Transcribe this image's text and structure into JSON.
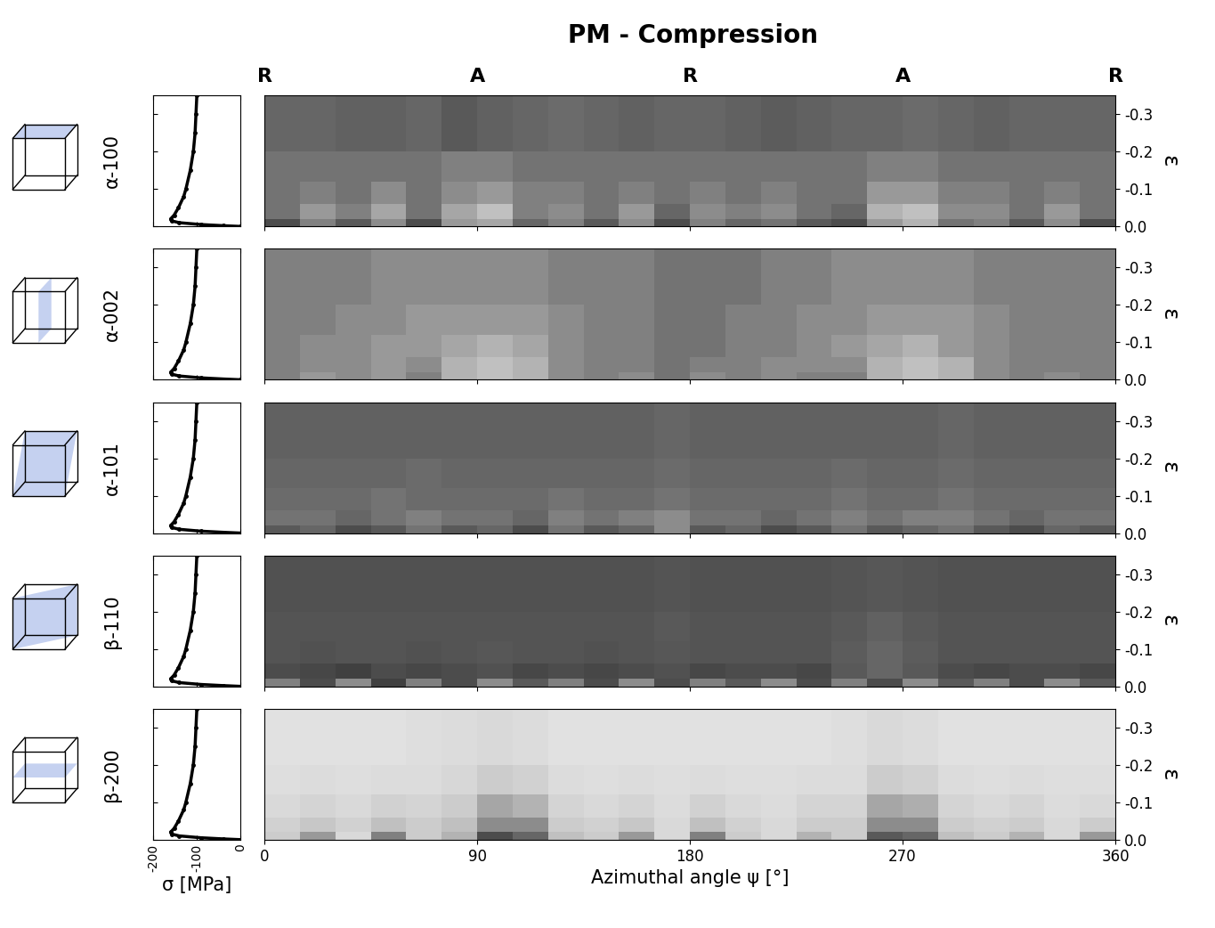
{
  "title": "PM - Compression",
  "xlabel": "Azimuthal angle ψ [°]",
  "ylabel": "ε",
  "xlim": [
    0,
    360
  ],
  "xticks": [
    0,
    90,
    180,
    270,
    360
  ],
  "top_labels": {
    "positions": [
      0,
      90,
      180,
      270,
      360
    ],
    "labels": [
      "R",
      "A",
      "R",
      "A",
      "R"
    ]
  },
  "ylim": [
    0,
    -0.35
  ],
  "yticks": [
    {
      "value": 0,
      "label": "0.0"
    },
    {
      "value": -0.1,
      "label": "-0.1"
    },
    {
      "value": -0.2,
      "label": "-0.2"
    },
    {
      "value": -0.3,
      "label": "-0.3"
    }
  ],
  "psi_edges": [
    0,
    15,
    30,
    45,
    60,
    75,
    90,
    105,
    120,
    135,
    150,
    165,
    180,
    195,
    210,
    225,
    240,
    255,
    270,
    285,
    300,
    315,
    330,
    345,
    360
  ],
  "strain_edges": [
    0,
    -0.02,
    -0.06,
    -0.12,
    -0.2,
    -0.35
  ],
  "cell_range": [
    0,
    1
  ],
  "stress_strain": {
    "xlabel": "σ [MPa]",
    "xlim": [
      -200,
      0
    ],
    "xticks": [
      -200,
      -100,
      0
    ],
    "strain": [
      0,
      -0.002,
      -0.005,
      -0.01,
      -0.015,
      -0.02,
      -0.03,
      -0.05,
      -0.08,
      -0.1,
      -0.15,
      -0.2,
      -0.25,
      -0.3,
      -0.35
    ],
    "stress": [
      0,
      -40,
      -90,
      -140,
      -158,
      -160,
      -152,
      -142,
      -130,
      -125,
      -115,
      -108,
      -104,
      -102,
      -100
    ]
  },
  "chart_data": [
    {
      "type": "heatmap",
      "label": "α-100",
      "cells": [
        [
          0.3,
          0.5,
          0.35,
          0.55,
          0.3,
          0.6,
          0.65,
          0.4,
          0.5,
          0.35,
          0.55,
          0.3,
          0.5,
          0.4,
          0.45,
          0.35,
          0.3,
          0.6,
          0.7,
          0.45,
          0.5,
          0.35,
          0.55,
          0.3
        ],
        [
          0.45,
          0.6,
          0.5,
          0.65,
          0.45,
          0.65,
          0.75,
          0.5,
          0.55,
          0.45,
          0.6,
          0.4,
          0.55,
          0.5,
          0.55,
          0.45,
          0.4,
          0.7,
          0.75,
          0.55,
          0.55,
          0.45,
          0.6,
          0.45
        ],
        [
          0.45,
          0.5,
          0.45,
          0.55,
          0.45,
          0.55,
          0.6,
          0.5,
          0.5,
          0.45,
          0.5,
          0.45,
          0.5,
          0.45,
          0.5,
          0.45,
          0.45,
          0.6,
          0.6,
          0.5,
          0.5,
          0.45,
          0.5,
          0.45
        ],
        [
          0.45,
          0.45,
          0.45,
          0.45,
          0.45,
          0.5,
          0.5,
          0.45,
          0.45,
          0.45,
          0.45,
          0.45,
          0.45,
          0.45,
          0.45,
          0.45,
          0.45,
          0.5,
          0.5,
          0.45,
          0.45,
          0.45,
          0.45,
          0.45
        ],
        [
          0.4,
          0.4,
          0.38,
          0.38,
          0.4,
          0.35,
          0.38,
          0.4,
          0.42,
          0.4,
          0.38,
          0.4,
          0.4,
          0.38,
          0.36,
          0.38,
          0.4,
          0.4,
          0.42,
          0.4,
          0.38,
          0.4,
          0.4,
          0.4
        ]
      ]
    },
    {
      "type": "heatmap",
      "label": "α-002",
      "cells": [
        [
          0.5,
          0.6,
          0.55,
          0.6,
          0.5,
          0.7,
          0.75,
          0.7,
          0.55,
          0.5,
          0.55,
          0.45,
          0.55,
          0.5,
          0.55,
          0.5,
          0.5,
          0.7,
          0.75,
          0.7,
          0.55,
          0.5,
          0.55,
          0.5
        ],
        [
          0.5,
          0.55,
          0.55,
          0.6,
          0.55,
          0.7,
          0.75,
          0.7,
          0.55,
          0.5,
          0.5,
          0.45,
          0.5,
          0.5,
          0.55,
          0.55,
          0.55,
          0.7,
          0.75,
          0.7,
          0.55,
          0.5,
          0.5,
          0.5
        ],
        [
          0.5,
          0.55,
          0.55,
          0.6,
          0.6,
          0.65,
          0.7,
          0.65,
          0.55,
          0.5,
          0.5,
          0.45,
          0.45,
          0.5,
          0.5,
          0.55,
          0.6,
          0.65,
          0.7,
          0.6,
          0.55,
          0.5,
          0.5,
          0.5
        ],
        [
          0.5,
          0.5,
          0.55,
          0.55,
          0.6,
          0.6,
          0.6,
          0.6,
          0.55,
          0.5,
          0.5,
          0.45,
          0.45,
          0.5,
          0.5,
          0.55,
          0.55,
          0.6,
          0.6,
          0.6,
          0.55,
          0.5,
          0.5,
          0.5
        ],
        [
          0.5,
          0.5,
          0.5,
          0.55,
          0.55,
          0.55,
          0.55,
          0.55,
          0.5,
          0.5,
          0.5,
          0.45,
          0.45,
          0.45,
          0.5,
          0.5,
          0.55,
          0.55,
          0.55,
          0.55,
          0.5,
          0.5,
          0.5,
          0.5
        ]
      ]
    },
    {
      "type": "heatmap",
      "label": "α-101",
      "cells": [
        [
          0.35,
          0.4,
          0.3,
          0.35,
          0.45,
          0.35,
          0.4,
          0.3,
          0.45,
          0.35,
          0.4,
          0.55,
          0.35,
          0.4,
          0.3,
          0.35,
          0.45,
          0.35,
          0.4,
          0.45,
          0.35,
          0.3,
          0.4,
          0.35
        ],
        [
          0.45,
          0.45,
          0.4,
          0.45,
          0.5,
          0.45,
          0.45,
          0.4,
          0.5,
          0.45,
          0.5,
          0.55,
          0.45,
          0.45,
          0.4,
          0.45,
          0.5,
          0.45,
          0.5,
          0.5,
          0.45,
          0.4,
          0.45,
          0.45
        ],
        [
          0.42,
          0.42,
          0.42,
          0.45,
          0.42,
          0.42,
          0.42,
          0.42,
          0.45,
          0.42,
          0.42,
          0.45,
          0.42,
          0.42,
          0.42,
          0.42,
          0.45,
          0.42,
          0.42,
          0.45,
          0.42,
          0.42,
          0.42,
          0.42
        ],
        [
          0.4,
          0.4,
          0.4,
          0.4,
          0.42,
          0.4,
          0.4,
          0.4,
          0.4,
          0.4,
          0.4,
          0.42,
          0.4,
          0.4,
          0.4,
          0.4,
          0.42,
          0.4,
          0.4,
          0.42,
          0.4,
          0.4,
          0.4,
          0.4
        ],
        [
          0.38,
          0.38,
          0.38,
          0.38,
          0.38,
          0.38,
          0.38,
          0.38,
          0.38,
          0.38,
          0.38,
          0.4,
          0.38,
          0.38,
          0.38,
          0.38,
          0.38,
          0.38,
          0.38,
          0.4,
          0.38,
          0.38,
          0.38,
          0.38
        ]
      ]
    },
    {
      "type": "heatmap",
      "label": "β-110",
      "cells": [
        [
          0.5,
          0.3,
          0.55,
          0.25,
          0.5,
          0.3,
          0.55,
          0.35,
          0.5,
          0.3,
          0.55,
          0.3,
          0.5,
          0.35,
          0.55,
          0.3,
          0.5,
          0.3,
          0.55,
          0.35,
          0.5,
          0.3,
          0.55,
          0.35
        ],
        [
          0.3,
          0.28,
          0.25,
          0.3,
          0.28,
          0.3,
          0.32,
          0.28,
          0.3,
          0.28,
          0.3,
          0.32,
          0.28,
          0.3,
          0.3,
          0.28,
          0.35,
          0.4,
          0.35,
          0.3,
          0.28,
          0.3,
          0.3,
          0.28
        ],
        [
          0.33,
          0.32,
          0.33,
          0.33,
          0.32,
          0.33,
          0.34,
          0.33,
          0.33,
          0.32,
          0.33,
          0.34,
          0.33,
          0.33,
          0.33,
          0.33,
          0.36,
          0.4,
          0.36,
          0.33,
          0.33,
          0.33,
          0.33,
          0.33
        ],
        [
          0.33,
          0.33,
          0.33,
          0.33,
          0.33,
          0.33,
          0.33,
          0.33,
          0.33,
          0.33,
          0.33,
          0.35,
          0.33,
          0.33,
          0.33,
          0.33,
          0.35,
          0.38,
          0.35,
          0.33,
          0.33,
          0.33,
          0.33,
          0.33
        ],
        [
          0.32,
          0.32,
          0.32,
          0.32,
          0.32,
          0.32,
          0.32,
          0.32,
          0.32,
          0.32,
          0.32,
          0.33,
          0.32,
          0.32,
          0.32,
          0.32,
          0.33,
          0.34,
          0.33,
          0.32,
          0.32,
          0.32,
          0.32,
          0.32
        ]
      ]
    },
    {
      "type": "heatmap",
      "label": "β-200",
      "cells": [
        [
          0.8,
          0.6,
          0.85,
          0.5,
          0.8,
          0.7,
          0.3,
          0.4,
          0.75,
          0.8,
          0.6,
          0.85,
          0.5,
          0.8,
          0.85,
          0.7,
          0.8,
          0.35,
          0.4,
          0.75,
          0.8,
          0.7,
          0.85,
          0.6
        ],
        [
          0.82,
          0.78,
          0.82,
          0.75,
          0.8,
          0.75,
          0.55,
          0.55,
          0.8,
          0.82,
          0.78,
          0.85,
          0.75,
          0.82,
          0.85,
          0.8,
          0.8,
          0.55,
          0.55,
          0.8,
          0.82,
          0.8,
          0.85,
          0.8
        ],
        [
          0.85,
          0.83,
          0.85,
          0.82,
          0.83,
          0.8,
          0.65,
          0.7,
          0.83,
          0.85,
          0.83,
          0.86,
          0.82,
          0.85,
          0.86,
          0.83,
          0.83,
          0.65,
          0.68,
          0.83,
          0.85,
          0.83,
          0.86,
          0.85
        ],
        [
          0.87,
          0.86,
          0.87,
          0.86,
          0.86,
          0.84,
          0.8,
          0.82,
          0.86,
          0.87,
          0.86,
          0.87,
          0.86,
          0.87,
          0.87,
          0.86,
          0.86,
          0.8,
          0.82,
          0.86,
          0.87,
          0.86,
          0.87,
          0.87
        ],
        [
          0.88,
          0.88,
          0.88,
          0.88,
          0.87,
          0.86,
          0.85,
          0.86,
          0.88,
          0.88,
          0.88,
          0.88,
          0.88,
          0.88,
          0.88,
          0.88,
          0.87,
          0.85,
          0.86,
          0.88,
          0.88,
          0.88,
          0.88,
          0.88
        ]
      ]
    }
  ]
}
